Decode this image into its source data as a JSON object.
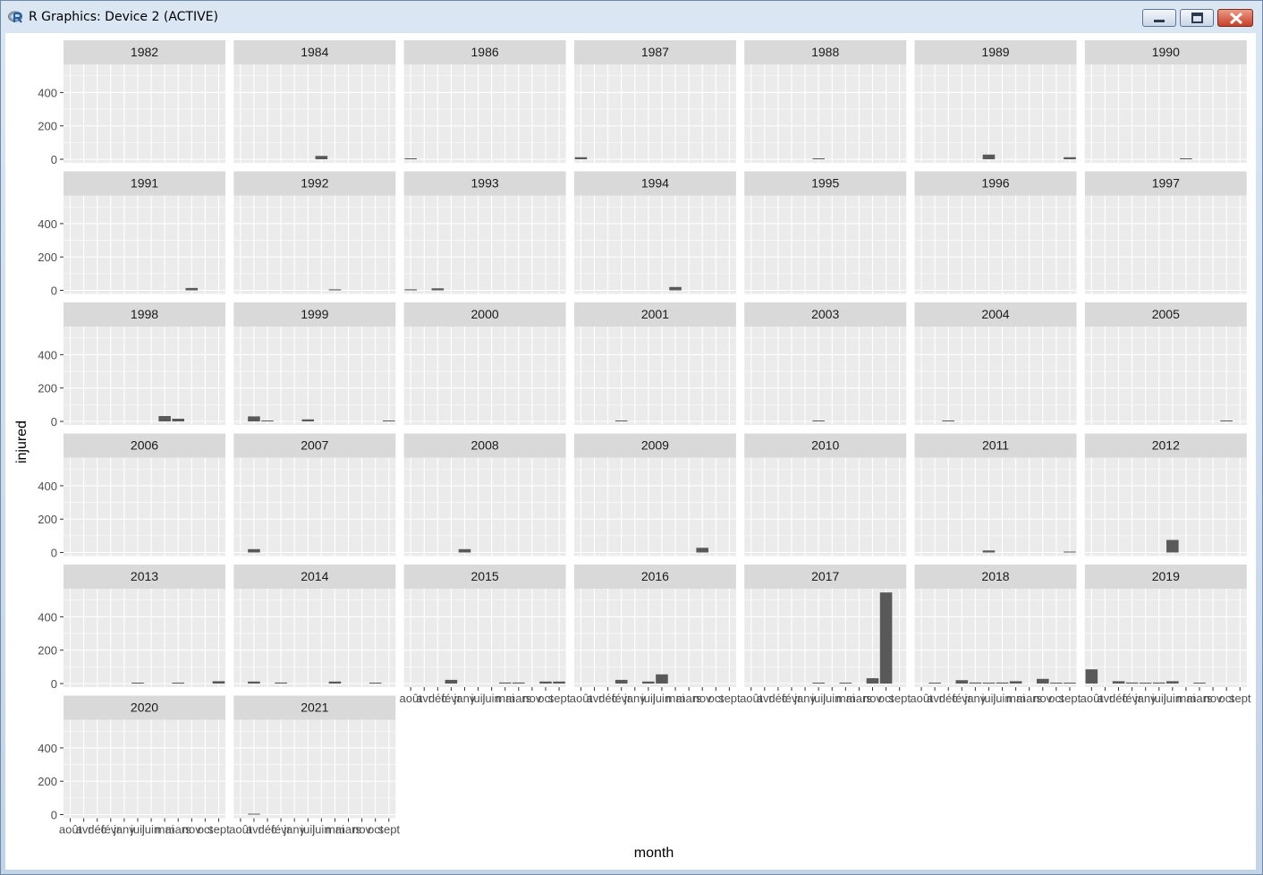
{
  "window": {
    "title": "R Graphics: Device 2 (ACTIVE)",
    "app_icon": "r-logo-icon",
    "controls": {
      "minimize": "minimize-icon",
      "maximize": "maximize-icon",
      "close": "close-icon"
    }
  },
  "chart_data": {
    "type": "bar",
    "facet": "year",
    "facet_wrap_ncol": 7,
    "xlabel": "month",
    "ylabel": "injured",
    "ylim": [
      0,
      590
    ],
    "y_ticks": [
      0,
      200,
      400
    ],
    "grid": true,
    "panel_background": "#EBEBEB",
    "strip_background": "#D9D9D9",
    "bar_color": "#595959",
    "categories": [
      "août",
      "avr",
      "déc",
      "févr",
      "janv",
      "juil",
      "juin",
      "mai",
      "mars",
      "nov",
      "oct",
      "sept"
    ],
    "x_tick_labels": [
      "août",
      "avr",
      "déc",
      "févr",
      "janv",
      "juil",
      "juin",
      "mai",
      "mars",
      "nov",
      "oct",
      "sept"
    ],
    "panels": [
      {
        "year": "1982",
        "bars": []
      },
      {
        "year": "1984",
        "bars": [
          {
            "month": "juin",
            "injured": 20
          }
        ]
      },
      {
        "year": "1986",
        "bars": [
          {
            "month": "août",
            "injured": 4
          }
        ]
      },
      {
        "year": "1987",
        "bars": [
          {
            "month": "août",
            "injured": 12
          }
        ]
      },
      {
        "year": "1988",
        "bars": [
          {
            "month": "juil",
            "injured": 4
          }
        ]
      },
      {
        "year": "1989",
        "bars": [
          {
            "month": "juil",
            "injured": 28
          },
          {
            "month": "sept",
            "injured": 12
          }
        ]
      },
      {
        "year": "1990",
        "bars": [
          {
            "month": "mai",
            "injured": 4
          }
        ]
      },
      {
        "year": "1991",
        "bars": [
          {
            "month": "nov",
            "injured": 14
          }
        ]
      },
      {
        "year": "1992",
        "bars": [
          {
            "month": "mai",
            "injured": 6
          }
        ]
      },
      {
        "year": "1993",
        "bars": [
          {
            "month": "août",
            "injured": 6
          },
          {
            "month": "déc",
            "injured": 12
          }
        ]
      },
      {
        "year": "1994",
        "bars": [
          {
            "month": "mai",
            "injured": 20
          }
        ]
      },
      {
        "year": "1995",
        "bars": []
      },
      {
        "year": "1996",
        "bars": []
      },
      {
        "year": "1997",
        "bars": []
      },
      {
        "year": "1998",
        "bars": [
          {
            "month": "mai",
            "injured": 32
          },
          {
            "month": "mars",
            "injured": 16
          }
        ]
      },
      {
        "year": "1999",
        "bars": [
          {
            "month": "avr",
            "injured": 30
          },
          {
            "month": "déc",
            "injured": 4
          },
          {
            "month": "juil",
            "injured": 12
          },
          {
            "month": "sept",
            "injured": 4
          }
        ]
      },
      {
        "year": "2000",
        "bars": []
      },
      {
        "year": "2001",
        "bars": [
          {
            "month": "févr",
            "injured": 4
          }
        ]
      },
      {
        "year": "2003",
        "bars": [
          {
            "month": "juil",
            "injured": 4
          }
        ]
      },
      {
        "year": "2004",
        "bars": [
          {
            "month": "déc",
            "injured": 4
          }
        ]
      },
      {
        "year": "2005",
        "bars": [
          {
            "month": "oct",
            "injured": 4
          }
        ]
      },
      {
        "year": "2006",
        "bars": []
      },
      {
        "year": "2007",
        "bars": [
          {
            "month": "avr",
            "injured": 20
          }
        ]
      },
      {
        "year": "2008",
        "bars": [
          {
            "month": "janv",
            "injured": 20
          }
        ]
      },
      {
        "year": "2009",
        "bars": [
          {
            "month": "nov",
            "injured": 28
          }
        ]
      },
      {
        "year": "2010",
        "bars": []
      },
      {
        "year": "2011",
        "bars": [
          {
            "month": "juil",
            "injured": 12
          },
          {
            "month": "sept",
            "injured": 4
          }
        ]
      },
      {
        "year": "2012",
        "bars": [
          {
            "month": "juin",
            "injured": 75
          }
        ]
      },
      {
        "year": "2013",
        "bars": [
          {
            "month": "juil",
            "injured": 4
          },
          {
            "month": "mars",
            "injured": 4
          },
          {
            "month": "sept",
            "injured": 14
          }
        ]
      },
      {
        "year": "2014",
        "bars": [
          {
            "month": "avr",
            "injured": 12
          },
          {
            "month": "févr",
            "injured": 6
          },
          {
            "month": "mai",
            "injured": 12
          },
          {
            "month": "oct",
            "injured": 4
          }
        ]
      },
      {
        "year": "2015",
        "bars": [
          {
            "month": "févr",
            "injured": 22
          },
          {
            "month": "mai",
            "injured": 6
          },
          {
            "month": "mars",
            "injured": 6
          },
          {
            "month": "oct",
            "injured": 12
          },
          {
            "month": "sept",
            "injured": 12
          }
        ]
      },
      {
        "year": "2016",
        "bars": [
          {
            "month": "févr",
            "injured": 22
          },
          {
            "month": "juil",
            "injured": 12
          },
          {
            "month": "juin",
            "injured": 55
          }
        ]
      },
      {
        "year": "2017",
        "bars": [
          {
            "month": "juil",
            "injured": 4
          },
          {
            "month": "mai",
            "injured": 4
          },
          {
            "month": "nov",
            "injured": 32
          },
          {
            "month": "oct",
            "injured": 546
          }
        ]
      },
      {
        "year": "2018",
        "bars": [
          {
            "month": "avr",
            "injured": 4
          },
          {
            "month": "févr",
            "injured": 20
          },
          {
            "month": "janv",
            "injured": 6
          },
          {
            "month": "juil",
            "injured": 4
          },
          {
            "month": "juin",
            "injured": 6
          },
          {
            "month": "mai",
            "injured": 14
          },
          {
            "month": "nov",
            "injured": 28
          },
          {
            "month": "oct",
            "injured": 4
          },
          {
            "month": "sept",
            "injured": 4
          }
        ]
      },
      {
        "year": "2019",
        "bars": [
          {
            "month": "août",
            "injured": 85
          },
          {
            "month": "déc",
            "injured": 14
          },
          {
            "month": "févr",
            "injured": 6
          },
          {
            "month": "janv",
            "injured": 4
          },
          {
            "month": "juil",
            "injured": 6
          },
          {
            "month": "juin",
            "injured": 14
          },
          {
            "month": "mars",
            "injured": 4
          }
        ]
      },
      {
        "year": "2020",
        "bars": []
      },
      {
        "year": "2021",
        "bars": [
          {
            "month": "avr",
            "injured": 4
          }
        ]
      }
    ]
  }
}
